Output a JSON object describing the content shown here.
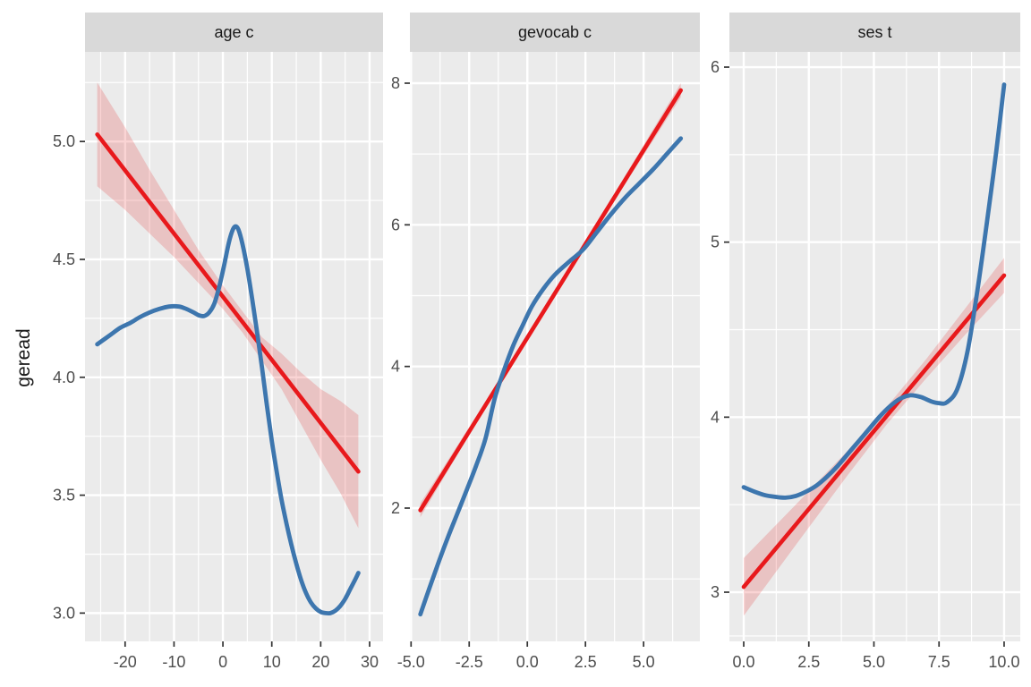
{
  "figure": {
    "y_axis_title": "geread",
    "background": "#ffffff",
    "panel_background": "#ebebeb",
    "strip_background": "#d9d9d9",
    "grid_color": "#ffffff",
    "tick_mark_color": "#333333",
    "tick_label_color": "#4d4d4d",
    "strip_text_color": "#1a1a1a",
    "lm_color": "#e8191c",
    "ribbon_color": "rgba(227,26,28,0.19)",
    "loess_color": "#3d76ae"
  },
  "chart_data": {
    "type": "line",
    "title": "",
    "ylabel": "geread",
    "legend": "none",
    "grid": "on",
    "facets": [
      {
        "title": "age c",
        "xlim": [
          -28.2,
          32.75
        ],
        "ylim": [
          2.88,
          5.38
        ],
        "x_ticks": [
          -20,
          -10,
          0,
          10,
          20,
          30
        ],
        "x_tick_labels": [
          "-20",
          "-10",
          "0",
          "10",
          "20",
          "30"
        ],
        "x_minor": [
          -25,
          -15,
          -5,
          5,
          15,
          25
        ],
        "y_ticks": [
          3.0,
          3.5,
          4.0,
          4.5,
          5.0
        ],
        "y_tick_labels": [
          "3.0",
          "3.5",
          "4.0",
          "4.5",
          "5.0"
        ],
        "y_minor": [
          3.25,
          3.75,
          4.25,
          4.75,
          5.25
        ],
        "ribbon": {
          "x": [
            -25.7,
            -20,
            -15,
            -10,
            -5,
            0,
            4,
            8,
            12,
            16,
            20,
            24,
            27.7
          ],
          "upper": [
            5.25,
            5.06,
            4.88,
            4.71,
            4.54,
            4.39,
            4.28,
            4.17,
            4.1,
            4.02,
            3.95,
            3.9,
            3.84
          ],
          "lower": [
            4.81,
            4.71,
            4.61,
            4.51,
            4.4,
            4.29,
            4.19,
            4.07,
            3.95,
            3.8,
            3.65,
            3.51,
            3.36
          ]
        },
        "series": [
          {
            "name": "lm-fit",
            "role": "linear-regression",
            "points": [
              [
                -25.7,
                5.03
              ],
              [
                27.7,
                3.6
              ]
            ]
          },
          {
            "name": "loess-fit",
            "role": "loess-smooth",
            "points": [
              [
                -25.7,
                4.14
              ],
              [
                -23,
                4.18
              ],
              [
                -21,
                4.21
              ],
              [
                -19,
                4.23
              ],
              [
                -17,
                4.255
              ],
              [
                -15,
                4.275
              ],
              [
                -13,
                4.29
              ],
              [
                -11,
                4.3
              ],
              [
                -9,
                4.3
              ],
              [
                -7.5,
                4.29
              ],
              [
                -6,
                4.275
              ],
              [
                -4.8,
                4.262
              ],
              [
                -3.8,
                4.26
              ],
              [
                -2.8,
                4.275
              ],
              [
                -1.8,
                4.31
              ],
              [
                -0.8,
                4.38
              ],
              [
                0.2,
                4.47
              ],
              [
                1.2,
                4.57
              ],
              [
                2,
                4.625
              ],
              [
                2.6,
                4.64
              ],
              [
                3.2,
                4.625
              ],
              [
                4,
                4.565
              ],
              [
                5,
                4.46
              ],
              [
                6,
                4.33
              ],
              [
                7,
                4.19
              ],
              [
                8,
                4.04
              ],
              [
                9,
                3.88
              ],
              [
                10,
                3.73
              ],
              [
                11,
                3.6
              ],
              [
                12,
                3.48
              ],
              [
                13,
                3.38
              ],
              [
                14,
                3.29
              ],
              [
                15,
                3.21
              ],
              [
                16,
                3.14
              ],
              [
                17,
                3.085
              ],
              [
                18,
                3.045
              ],
              [
                19,
                3.02
              ],
              [
                20,
                3.005
              ],
              [
                21,
                3.0
              ],
              [
                22,
                3.0
              ],
              [
                23,
                3.01
              ],
              [
                24,
                3.03
              ],
              [
                25,
                3.06
              ],
              [
                26,
                3.1
              ],
              [
                27,
                3.14
              ],
              [
                27.7,
                3.17
              ]
            ]
          }
        ]
      },
      {
        "title": "gevocab c",
        "xlim": [
          -5.05,
          7.42
        ],
        "ylim": [
          0.118,
          8.442
        ],
        "x_ticks": [
          -5.0,
          -2.5,
          0.0,
          2.5,
          5.0
        ],
        "x_tick_labels": [
          "-5.0",
          "-2.5",
          "0.0",
          "2.5",
          "5.0"
        ],
        "x_minor": [
          -3.75,
          -1.25,
          1.25,
          3.75,
          6.25
        ],
        "y_ticks": [
          2,
          4,
          6,
          8
        ],
        "y_tick_labels": [
          "2",
          "4",
          "6",
          "8"
        ],
        "y_minor": [
          1,
          3,
          5,
          7
        ],
        "ribbon": {
          "x": [
            -4.6,
            -2,
            0,
            2,
            4,
            6.6
          ],
          "upper": [
            2.07,
            3.4,
            4.44,
            5.5,
            6.58,
            8.0
          ],
          "lower": [
            1.87,
            3.31,
            4.38,
            5.43,
            6.47,
            7.8
          ]
        },
        "series": [
          {
            "name": "lm-fit",
            "role": "linear-regression",
            "points": [
              [
                -4.6,
                1.97
              ],
              [
                6.6,
                7.9
              ]
            ]
          },
          {
            "name": "loess-fit",
            "role": "loess-smooth",
            "points": [
              [
                -4.6,
                0.5
              ],
              [
                -4.2,
                0.88
              ],
              [
                -3.8,
                1.25
              ],
              [
                -3.4,
                1.6
              ],
              [
                -3.0,
                1.93
              ],
              [
                -2.6,
                2.26
              ],
              [
                -2.2,
                2.6
              ],
              [
                -1.8,
                2.98
              ],
              [
                -1.4,
                3.55
              ],
              [
                -1.0,
                3.95
              ],
              [
                -0.6,
                4.3
              ],
              [
                -0.2,
                4.58
              ],
              [
                0.2,
                4.85
              ],
              [
                0.7,
                5.1
              ],
              [
                1.2,
                5.3
              ],
              [
                1.8,
                5.48
              ],
              [
                2.4,
                5.65
              ],
              [
                3.0,
                5.9
              ],
              [
                3.6,
                6.15
              ],
              [
                4.2,
                6.38
              ],
              [
                4.8,
                6.58
              ],
              [
                5.4,
                6.78
              ],
              [
                6.0,
                7.0
              ],
              [
                6.6,
                7.22
              ]
            ]
          }
        ]
      },
      {
        "title": "ses t",
        "xlim": [
          -0.55,
          10.62
        ],
        "ylim": [
          2.719,
          6.087
        ],
        "x_ticks": [
          0.0,
          2.5,
          5.0,
          7.5,
          10.0
        ],
        "x_tick_labels": [
          "0.0",
          "2.5",
          "5.0",
          "7.5",
          "10.0"
        ],
        "x_minor": [
          1.25,
          3.75,
          6.25,
          8.75
        ],
        "y_ticks": [
          3,
          4,
          5,
          6
        ],
        "y_tick_labels": [
          "3",
          "4",
          "5",
          "6"
        ],
        "y_minor": [
          2.75,
          3.5,
          4.5,
          5.5
        ],
        "ribbon": {
          "x": [
            0,
            2,
            4,
            5.5,
            7,
            8.5,
            10
          ],
          "upper": [
            3.195,
            3.5,
            3.81,
            4.06,
            4.33,
            4.62,
            4.91
          ],
          "lower": [
            2.865,
            3.27,
            3.67,
            3.96,
            4.22,
            4.47,
            4.71
          ]
        },
        "series": [
          {
            "name": "lm-fit",
            "role": "linear-regression",
            "points": [
              [
                0,
                3.03
              ],
              [
                10,
                4.81
              ]
            ]
          },
          {
            "name": "loess-fit",
            "role": "loess-smooth",
            "points": [
              [
                0,
                3.6
              ],
              [
                0.4,
                3.575
              ],
              [
                0.8,
                3.555
              ],
              [
                1.2,
                3.545
              ],
              [
                1.6,
                3.54
              ],
              [
                2.0,
                3.55
              ],
              [
                2.4,
                3.575
              ],
              [
                2.8,
                3.61
              ],
              [
                3.2,
                3.66
              ],
              [
                3.6,
                3.72
              ],
              [
                4.0,
                3.79
              ],
              [
                4.4,
                3.86
              ],
              [
                4.8,
                3.93
              ],
              [
                5.2,
                4.0
              ],
              [
                5.6,
                4.06
              ],
              [
                6.0,
                4.105
              ],
              [
                6.4,
                4.125
              ],
              [
                6.8,
                4.115
              ],
              [
                7.2,
                4.09
              ],
              [
                7.5,
                4.08
              ],
              [
                7.8,
                4.085
              ],
              [
                8.2,
                4.16
              ],
              [
                8.6,
                4.38
              ],
              [
                9.0,
                4.75
              ],
              [
                9.4,
                5.18
              ],
              [
                9.7,
                5.52
              ],
              [
                10,
                5.9
              ]
            ]
          }
        ]
      }
    ]
  }
}
